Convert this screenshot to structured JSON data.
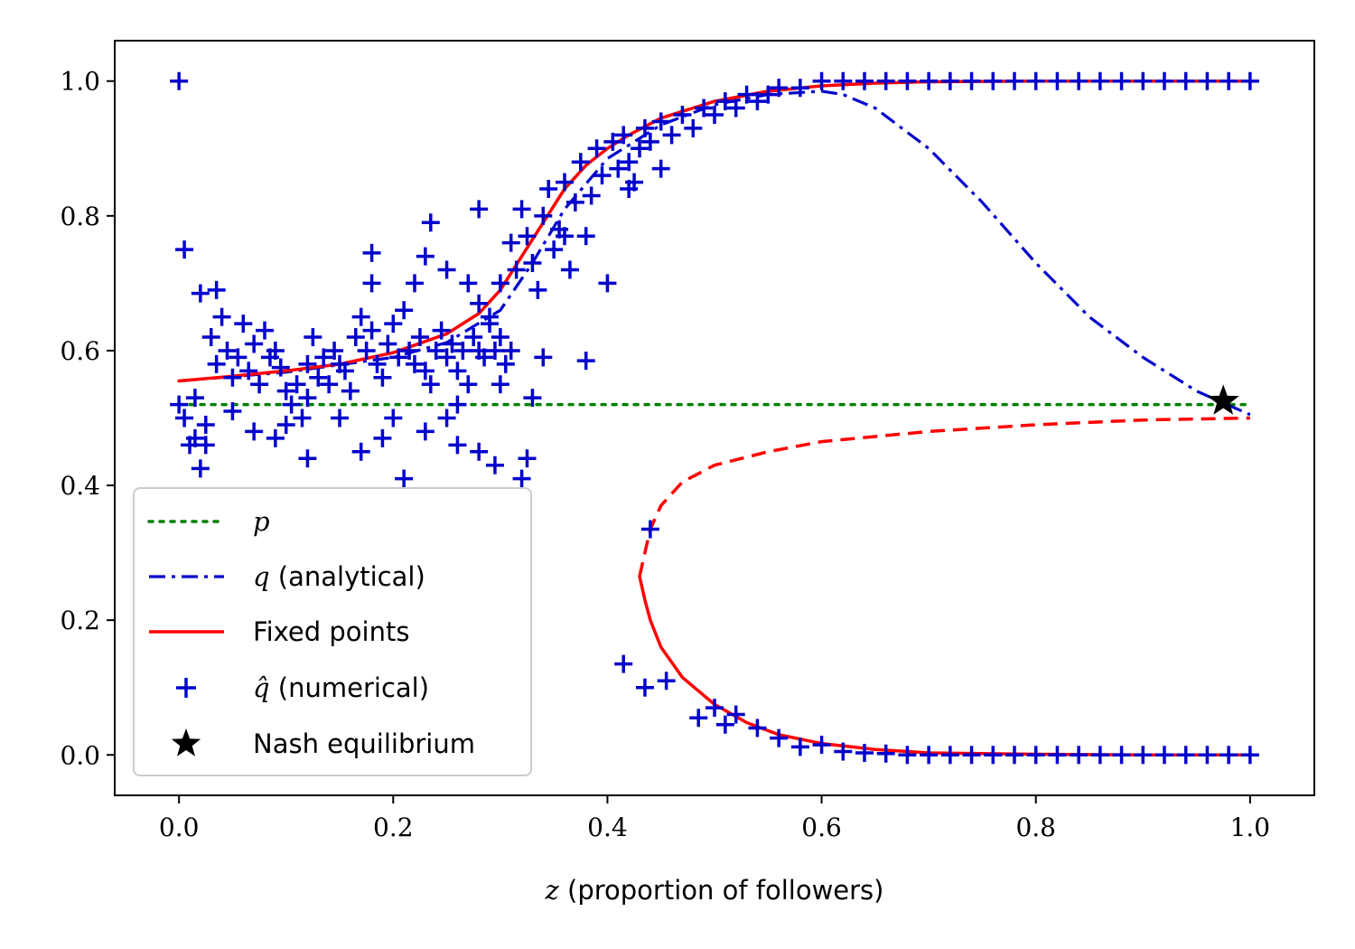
{
  "chart_data": {
    "type": "scatter",
    "title": "",
    "xlabel": {
      "symbol": "z",
      "text": " (proportion of followers)"
    },
    "ylabel": "",
    "xlim": [
      -0.06,
      1.06
    ],
    "ylim": [
      -0.06,
      1.06
    ],
    "grid": false,
    "x_ticks": [
      0.0,
      0.2,
      0.4,
      0.6,
      0.8,
      1.0
    ],
    "x_tick_labels": [
      "0.0",
      "0.2",
      "0.4",
      "0.6",
      "0.8",
      "1.0"
    ],
    "y_ticks": [
      0.0,
      0.2,
      0.4,
      0.6,
      0.8,
      1.0
    ],
    "y_tick_labels": [
      "0.0",
      "0.2",
      "0.4",
      "0.6",
      "0.8",
      "1.0"
    ],
    "legend_position": "lower-left",
    "legend": [
      {
        "key": "p",
        "symbol": "p",
        "text": "",
        "color": "#008000",
        "style": "dotted"
      },
      {
        "key": "q",
        "symbol": "q",
        "text": " (analytical)",
        "color": "#0000cc",
        "style": "dashdot"
      },
      {
        "key": "fixed",
        "symbol": "",
        "text": "Fixed points",
        "color": "#ff0000",
        "style": "solid"
      },
      {
        "key": "qhat",
        "symbol": "q̂",
        "text": " (numerical)",
        "color": "#0000cc",
        "style": "plus"
      },
      {
        "key": "nash",
        "symbol": "",
        "text": "Nash equilibrium",
        "color": "#000000",
        "style": "star"
      }
    ],
    "series": [
      {
        "name": "p",
        "color": "#008000",
        "x": [
          0,
          1
        ],
        "y": [
          0.52,
          0.52
        ]
      },
      {
        "name": "q (analytical)",
        "color": "#0000cc",
        "x": [
          0,
          0.1,
          0.2,
          0.25,
          0.3,
          0.33,
          0.36,
          0.4,
          0.45,
          0.5,
          0.55,
          0.6,
          0.62,
          0.65,
          0.7,
          0.75,
          0.8,
          0.85,
          0.9,
          0.95,
          1.0
        ],
        "y": [
          0.555,
          0.568,
          0.59,
          0.612,
          0.66,
          0.73,
          0.81,
          0.885,
          0.935,
          0.965,
          0.98,
          0.985,
          0.98,
          0.96,
          0.9,
          0.82,
          0.73,
          0.65,
          0.59,
          0.54,
          0.505
        ]
      },
      {
        "name": "Fixed points (stable upper)",
        "color": "#ff0000",
        "x": [
          0,
          0.05,
          0.1,
          0.15,
          0.2,
          0.25,
          0.28,
          0.3,
          0.32,
          0.34,
          0.36,
          0.38,
          0.4,
          0.42,
          0.45,
          0.5,
          0.55,
          0.6,
          0.65,
          0.7,
          0.8,
          0.9,
          1.0
        ],
        "y": [
          0.555,
          0.562,
          0.57,
          0.58,
          0.597,
          0.625,
          0.655,
          0.69,
          0.74,
          0.79,
          0.84,
          0.875,
          0.9,
          0.92,
          0.945,
          0.97,
          0.985,
          0.993,
          0.997,
          0.999,
          1.0,
          1.0,
          1.0
        ]
      },
      {
        "name": "Fixed points (unstable)",
        "color": "#ff0000",
        "x": [
          0.43,
          0.435,
          0.44,
          0.45,
          0.47,
          0.5,
          0.55,
          0.6,
          0.7,
          0.8,
          0.9,
          1.0
        ],
        "y": [
          0.265,
          0.3,
          0.335,
          0.37,
          0.405,
          0.43,
          0.45,
          0.465,
          0.48,
          0.49,
          0.497,
          0.5
        ]
      },
      {
        "name": "Fixed points (stable lower)",
        "color": "#ff0000",
        "x": [
          0.43,
          0.435,
          0.44,
          0.45,
          0.47,
          0.5,
          0.53,
          0.56,
          0.6,
          0.65,
          0.7,
          0.8,
          0.9,
          1.0
        ],
        "y": [
          0.265,
          0.23,
          0.2,
          0.16,
          0.115,
          0.075,
          0.048,
          0.03,
          0.017,
          0.008,
          0.003,
          0.001,
          0.0,
          0.0
        ]
      }
    ],
    "scatter": {
      "name": "q̂ (numerical)",
      "color": "#0000cc",
      "points": [
        [
          0.0,
          1.0
        ],
        [
          0.005,
          0.75
        ],
        [
          0.0,
          0.52
        ],
        [
          0.005,
          0.5
        ],
        [
          0.01,
          0.46
        ],
        [
          0.015,
          0.53
        ],
        [
          0.015,
          0.47
        ],
        [
          0.02,
          0.425
        ],
        [
          0.025,
          0.49
        ],
        [
          0.025,
          0.46
        ],
        [
          0.02,
          0.685
        ],
        [
          0.035,
          0.69
        ],
        [
          0.03,
          0.62
        ],
        [
          0.035,
          0.58
        ],
        [
          0.04,
          0.65
        ],
        [
          0.045,
          0.6
        ],
        [
          0.05,
          0.56
        ],
        [
          0.055,
          0.59
        ],
        [
          0.06,
          0.64
        ],
        [
          0.065,
          0.57
        ],
        [
          0.07,
          0.61
        ],
        [
          0.075,
          0.55
        ],
        [
          0.08,
          0.63
        ],
        [
          0.085,
          0.59
        ],
        [
          0.09,
          0.6
        ],
        [
          0.095,
          0.575
        ],
        [
          0.1,
          0.54
        ],
        [
          0.105,
          0.52
        ],
        [
          0.11,
          0.55
        ],
        [
          0.115,
          0.5
        ],
        [
          0.12,
          0.53
        ],
        [
          0.125,
          0.62
        ],
        [
          0.13,
          0.56
        ],
        [
          0.135,
          0.59
        ],
        [
          0.14,
          0.55
        ],
        [
          0.145,
          0.6
        ],
        [
          0.15,
          0.58
        ],
        [
          0.155,
          0.57
        ],
        [
          0.16,
          0.54
        ],
        [
          0.165,
          0.62
        ],
        [
          0.17,
          0.65
        ],
        [
          0.175,
          0.6
        ],
        [
          0.18,
          0.63
        ],
        [
          0.185,
          0.58
        ],
        [
          0.19,
          0.56
        ],
        [
          0.195,
          0.61
        ],
        [
          0.2,
          0.64
        ],
        [
          0.205,
          0.59
        ],
        [
          0.21,
          0.66
        ],
        [
          0.215,
          0.6
        ],
        [
          0.22,
          0.58
        ],
        [
          0.225,
          0.62
        ],
        [
          0.23,
          0.57
        ],
        [
          0.235,
          0.55
        ],
        [
          0.24,
          0.6
        ],
        [
          0.245,
          0.63
        ],
        [
          0.25,
          0.59
        ],
        [
          0.255,
          0.61
        ],
        [
          0.26,
          0.57
        ],
        [
          0.265,
          0.6
        ],
        [
          0.27,
          0.55
        ],
        [
          0.275,
          0.62
        ],
        [
          0.28,
          0.6
        ],
        [
          0.285,
          0.59
        ],
        [
          0.29,
          0.64
        ],
        [
          0.295,
          0.6
        ],
        [
          0.3,
          0.62
        ],
        [
          0.305,
          0.58
        ],
        [
          0.31,
          0.6
        ],
        [
          0.07,
          0.48
        ],
        [
          0.09,
          0.47
        ],
        [
          0.12,
          0.44
        ],
        [
          0.17,
          0.45
        ],
        [
          0.19,
          0.47
        ],
        [
          0.21,
          0.41
        ],
        [
          0.25,
          0.5
        ],
        [
          0.28,
          0.45
        ],
        [
          0.295,
          0.43
        ],
        [
          0.32,
          0.41
        ],
        [
          0.325,
          0.44
        ],
        [
          0.2,
          0.5
        ],
        [
          0.23,
          0.48
        ],
        [
          0.26,
          0.52
        ],
        [
          0.15,
          0.5
        ],
        [
          0.1,
          0.49
        ],
        [
          0.26,
          0.46
        ],
        [
          0.05,
          0.51
        ],
        [
          0.12,
          0.58
        ],
        [
          0.18,
          0.7
        ],
        [
          0.18,
          0.745
        ],
        [
          0.23,
          0.74
        ],
        [
          0.235,
          0.79
        ],
        [
          0.22,
          0.7
        ],
        [
          0.25,
          0.72
        ],
        [
          0.27,
          0.7
        ],
        [
          0.28,
          0.67
        ],
        [
          0.29,
          0.65
        ],
        [
          0.3,
          0.7
        ],
        [
          0.31,
          0.76
        ],
        [
          0.315,
          0.72
        ],
        [
          0.32,
          0.81
        ],
        [
          0.325,
          0.77
        ],
        [
          0.33,
          0.73
        ],
        [
          0.335,
          0.69
        ],
        [
          0.34,
          0.8
        ],
        [
          0.345,
          0.84
        ],
        [
          0.35,
          0.75
        ],
        [
          0.355,
          0.78
        ],
        [
          0.36,
          0.85
        ],
        [
          0.365,
          0.72
        ],
        [
          0.37,
          0.82
        ],
        [
          0.375,
          0.88
        ],
        [
          0.38,
          0.77
        ],
        [
          0.385,
          0.83
        ],
        [
          0.39,
          0.9
        ],
        [
          0.395,
          0.86
        ],
        [
          0.4,
          0.7
        ],
        [
          0.405,
          0.91
        ],
        [
          0.41,
          0.87
        ],
        [
          0.415,
          0.92
        ],
        [
          0.42,
          0.88
        ],
        [
          0.425,
          0.85
        ],
        [
          0.43,
          0.9
        ],
        [
          0.435,
          0.93
        ],
        [
          0.44,
          0.91
        ],
        [
          0.45,
          0.94
        ],
        [
          0.46,
          0.92
        ],
        [
          0.47,
          0.95
        ],
        [
          0.48,
          0.93
        ],
        [
          0.49,
          0.96
        ],
        [
          0.5,
          0.95
        ],
        [
          0.51,
          0.97
        ],
        [
          0.52,
          0.96
        ],
        [
          0.53,
          0.98
        ],
        [
          0.54,
          0.97
        ],
        [
          0.55,
          0.98
        ],
        [
          0.56,
          0.99
        ],
        [
          0.58,
          0.99
        ],
        [
          0.6,
          1.0
        ],
        [
          0.62,
          1.0
        ],
        [
          0.64,
          1.0
        ],
        [
          0.66,
          1.0
        ],
        [
          0.68,
          1.0
        ],
        [
          0.7,
          1.0
        ],
        [
          0.72,
          1.0
        ],
        [
          0.74,
          1.0
        ],
        [
          0.76,
          1.0
        ],
        [
          0.78,
          1.0
        ],
        [
          0.8,
          1.0
        ],
        [
          0.82,
          1.0
        ],
        [
          0.84,
          1.0
        ],
        [
          0.86,
          1.0
        ],
        [
          0.88,
          1.0
        ],
        [
          0.9,
          1.0
        ],
        [
          0.92,
          1.0
        ],
        [
          0.94,
          1.0
        ],
        [
          0.96,
          1.0
        ],
        [
          0.98,
          1.0
        ],
        [
          1.0,
          1.0
        ],
        [
          0.45,
          0.87
        ],
        [
          0.33,
          0.53
        ],
        [
          0.34,
          0.59
        ],
        [
          0.38,
          0.585
        ],
        [
          0.3,
          0.55
        ],
        [
          0.36,
          0.77
        ],
        [
          0.42,
          0.84
        ],
        [
          0.28,
          0.81
        ],
        [
          0.44,
          0.335
        ],
        [
          0.415,
          0.135
        ],
        [
          0.435,
          0.1
        ],
        [
          0.455,
          0.11
        ],
        [
          0.485,
          0.055
        ],
        [
          0.5,
          0.07
        ],
        [
          0.51,
          0.045
        ],
        [
          0.52,
          0.06
        ],
        [
          0.54,
          0.04
        ],
        [
          0.56,
          0.025
        ],
        [
          0.58,
          0.012
        ],
        [
          0.6,
          0.015
        ],
        [
          0.62,
          0.005
        ],
        [
          0.64,
          0.003
        ],
        [
          0.66,
          0.002
        ],
        [
          0.68,
          0.0
        ],
        [
          0.7,
          0.0
        ],
        [
          0.72,
          0.0
        ],
        [
          0.74,
          0.0
        ],
        [
          0.76,
          0.0
        ],
        [
          0.78,
          0.0
        ],
        [
          0.8,
          0.0
        ],
        [
          0.82,
          0.0
        ],
        [
          0.84,
          0.0
        ],
        [
          0.86,
          0.0
        ],
        [
          0.88,
          0.0
        ],
        [
          0.9,
          0.0
        ],
        [
          0.92,
          0.0
        ],
        [
          0.94,
          0.0
        ],
        [
          0.96,
          0.0
        ],
        [
          0.98,
          0.0
        ],
        [
          1.0,
          0.0
        ]
      ]
    },
    "nash_equilibrium": {
      "x": 0.975,
      "y": 0.525,
      "color": "#000000"
    }
  }
}
